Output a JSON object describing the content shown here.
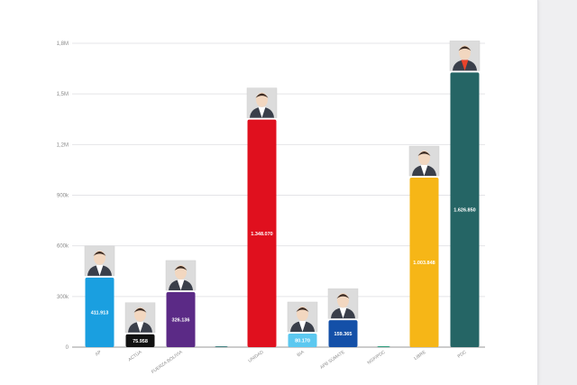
{
  "colors": {
    "grid": "#e4e4e8",
    "axis": "#9a9a9a",
    "face": "#f2d7c0",
    "hair": "#3a2a22",
    "jacket": "#3a3f4a"
  },
  "chart_data": {
    "type": "bar",
    "ylim": [
      0,
      1800000
    ],
    "yticks": [
      {
        "value": 0,
        "label": "0"
      },
      {
        "value": 300000,
        "label": "300k"
      },
      {
        "value": 600000,
        "label": "600k"
      },
      {
        "value": 900000,
        "label": "900k"
      },
      {
        "value": 1200000,
        "label": "1,2M"
      },
      {
        "value": 1500000,
        "label": "1,5M"
      },
      {
        "value": 1800000,
        "label": "1,8M"
      }
    ],
    "bars": [
      {
        "category": "AP",
        "value": 411913,
        "label": "411.913",
        "color": "#1a9fe0",
        "photo": true,
        "shirt": "#ffffff"
      },
      {
        "category": "ACTÚA",
        "value": 75958,
        "label": "75.958",
        "color": "#111111",
        "photo": true,
        "shirt": "#ffffff"
      },
      {
        "category": "FUERZA BOLIVIA",
        "value": 326136,
        "label": "326.136",
        "color": "#5b2a86",
        "photo": true,
        "shirt": "#ffffff"
      },
      {
        "category": "",
        "value": 5000,
        "label": "",
        "color": "#3f7f7f",
        "photo": false
      },
      {
        "category": "UNIDAD",
        "value": 1348070,
        "label": "1.348.070",
        "color": "#e0101e",
        "photo": true,
        "shirt": "#ffffff"
      },
      {
        "category": "BIA",
        "value": 80170,
        "label": "80.170",
        "color": "#5cc8f0",
        "photo": true,
        "shirt": "#ffffff"
      },
      {
        "category": "APB SÚMATE",
        "value": 159365,
        "label": "159.365",
        "color": "#1450a8",
        "photo": true,
        "shirt": "#ffffff"
      },
      {
        "category": "NGP/PDC",
        "value": 5000,
        "label": "",
        "color": "#2a9a7a",
        "photo": false
      },
      {
        "category": "LIBRE",
        "value": 1003848,
        "label": "1.003.848",
        "color": "#f6b617",
        "photo": true,
        "shirt": "#ffffff"
      },
      {
        "category": "PDC",
        "value": 1626850,
        "label": "1.626.850",
        "color": "#256565",
        "photo": true,
        "shirt": "#e8432b"
      }
    ]
  }
}
